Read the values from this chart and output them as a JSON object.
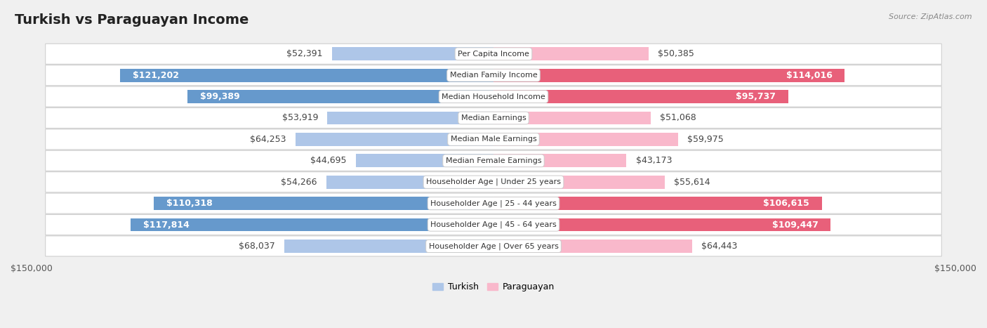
{
  "title": "Turkish vs Paraguayan Income",
  "source": "Source: ZipAtlas.com",
  "categories": [
    "Per Capita Income",
    "Median Family Income",
    "Median Household Income",
    "Median Earnings",
    "Median Male Earnings",
    "Median Female Earnings",
    "Householder Age | Under 25 years",
    "Householder Age | 25 - 44 years",
    "Householder Age | 45 - 64 years",
    "Householder Age | Over 65 years"
  ],
  "turkish_values": [
    52391,
    121202,
    99389,
    53919,
    64253,
    44695,
    54266,
    110318,
    117814,
    68037
  ],
  "paraguayan_values": [
    50385,
    114016,
    95737,
    51068,
    59975,
    43173,
    55614,
    106615,
    109447,
    64443
  ],
  "turkish_labels": [
    "$52,391",
    "$121,202",
    "$99,389",
    "$53,919",
    "$64,253",
    "$44,695",
    "$54,266",
    "$110,318",
    "$117,814",
    "$68,037"
  ],
  "paraguayan_labels": [
    "$50,385",
    "$114,016",
    "$95,737",
    "$51,068",
    "$59,975",
    "$43,173",
    "$55,614",
    "$106,615",
    "$109,447",
    "$64,443"
  ],
  "max_value": 150000,
  "turkish_color_light": "#aec6e8",
  "turkish_color_dark": "#6699cc",
  "paraguayan_color_light": "#f9b8cb",
  "paraguayan_color_dark": "#e8607a",
  "bg_color": "#f0f0f0",
  "row_bg_even": "#f8f8f8",
  "row_bg_odd": "#efefef",
  "inside_label_threshold": 70000,
  "bar_height": 0.62,
  "title_fontsize": 14,
  "label_fontsize": 9,
  "category_fontsize": 8,
  "axis_fontsize": 9,
  "legend_fontsize": 9
}
